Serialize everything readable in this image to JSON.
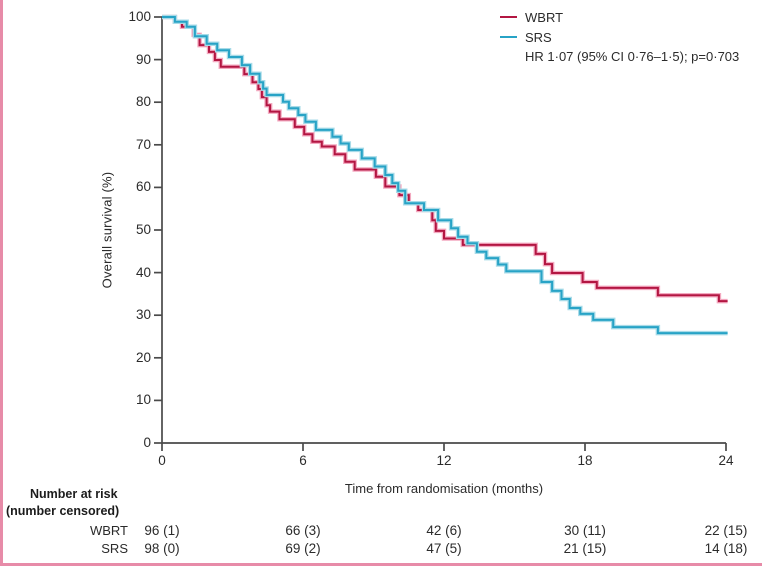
{
  "figure": {
    "accent_border_color": "#e78ba8",
    "background_color": "#ffffff",
    "axis_color": "#4a4a4a",
    "text_color": "#2b2b2b"
  },
  "legend": {
    "items": [
      {
        "label": "WBRT",
        "color": "#b31642"
      },
      {
        "label": "SRS",
        "color": "#27a3c6"
      }
    ],
    "stats_line": "HR 1·07 (95% CI 0·76–1·5); p=0·703"
  },
  "axes": {
    "y": {
      "label": "Overall survival (%)",
      "min": 0,
      "max": 100,
      "ticks": [
        0,
        10,
        20,
        30,
        40,
        50,
        60,
        70,
        80,
        90,
        100
      ]
    },
    "x": {
      "label": "Time from randomisation (months)",
      "min": 0,
      "max": 24,
      "ticks": [
        0,
        6,
        12,
        18,
        24
      ]
    }
  },
  "chart_data": {
    "type": "line",
    "subtype": "kaplan-meier-step",
    "title": "",
    "xlabel": "Time from randomisation (months)",
    "ylabel": "Overall survival (%)",
    "xlim": [
      0,
      24
    ],
    "ylim": [
      0,
      100
    ],
    "x_ticks": [
      0,
      6,
      12,
      18,
      24
    ],
    "y_ticks": [
      0,
      10,
      20,
      30,
      40,
      50,
      60,
      70,
      80,
      90,
      100
    ],
    "grid": false,
    "legend_position": "top-right",
    "annotation": "HR 1·07 (95% CI 0·76–1·5); p=0·703",
    "series": [
      {
        "name": "WBRT",
        "color": "#b31642",
        "halo_color": "#f3a9c0",
        "end_x": 24.07,
        "points": [
          [
            0,
            100
          ],
          [
            0.55,
            98.9
          ],
          [
            0.85,
            97.7
          ],
          [
            1.35,
            95.8
          ],
          [
            1.6,
            93.4
          ],
          [
            2.0,
            91.8
          ],
          [
            2.25,
            89.9
          ],
          [
            2.5,
            88.3
          ],
          [
            3.5,
            86.6
          ],
          [
            3.85,
            84.7
          ],
          [
            4.1,
            83.1
          ],
          [
            4.25,
            81.2
          ],
          [
            4.45,
            79.3
          ],
          [
            4.6,
            77.8
          ],
          [
            5.0,
            76.0
          ],
          [
            5.65,
            74.2
          ],
          [
            6.05,
            72.5
          ],
          [
            6.4,
            70.7
          ],
          [
            6.8,
            69.6
          ],
          [
            7.35,
            67.8
          ],
          [
            7.8,
            66.0
          ],
          [
            8.2,
            64.2
          ],
          [
            9.1,
            62.5
          ],
          [
            9.5,
            60.2
          ],
          [
            10.1,
            58.2
          ],
          [
            10.5,
            56.3
          ],
          [
            10.9,
            54.7
          ],
          [
            11.5,
            52.3
          ],
          [
            11.65,
            49.8
          ],
          [
            12.0,
            48.0
          ],
          [
            12.8,
            46.5
          ],
          [
            15.9,
            44.4
          ],
          [
            16.3,
            42.0
          ],
          [
            16.6,
            39.9
          ],
          [
            17.9,
            37.8
          ],
          [
            18.5,
            36.4
          ],
          [
            21.1,
            34.7
          ],
          [
            23.7,
            33.3
          ]
        ]
      },
      {
        "name": "SRS",
        "color": "#27a3c6",
        "halo_color": "#a8dbe8",
        "end_x": 24.07,
        "points": [
          [
            0,
            100
          ],
          [
            0.55,
            98.9
          ],
          [
            1.05,
            97.7
          ],
          [
            1.4,
            95.5
          ],
          [
            1.9,
            93.7
          ],
          [
            2.35,
            92.2
          ],
          [
            2.85,
            90.6
          ],
          [
            3.4,
            88.7
          ],
          [
            3.75,
            86.7
          ],
          [
            4.15,
            84.7
          ],
          [
            4.3,
            83.2
          ],
          [
            4.45,
            81.7
          ],
          [
            5.15,
            80.1
          ],
          [
            5.4,
            78.6
          ],
          [
            5.8,
            77.0
          ],
          [
            6.1,
            75.4
          ],
          [
            6.55,
            73.5
          ],
          [
            7.25,
            71.9
          ],
          [
            7.6,
            70.3
          ],
          [
            7.95,
            68.8
          ],
          [
            8.5,
            66.8
          ],
          [
            9.05,
            64.9
          ],
          [
            9.5,
            62.9
          ],
          [
            9.8,
            61.0
          ],
          [
            10.05,
            59.2
          ],
          [
            10.35,
            56.3
          ],
          [
            11.15,
            54.7
          ],
          [
            11.75,
            52.3
          ],
          [
            12.3,
            50.4
          ],
          [
            12.6,
            48.4
          ],
          [
            13.0,
            46.9
          ],
          [
            13.4,
            44.9
          ],
          [
            13.8,
            43.4
          ],
          [
            14.3,
            41.9
          ],
          [
            14.65,
            40.3
          ],
          [
            16.15,
            37.8
          ],
          [
            16.6,
            35.7
          ],
          [
            17.0,
            33.8
          ],
          [
            17.35,
            31.7
          ],
          [
            17.8,
            30.3
          ],
          [
            18.35,
            28.9
          ],
          [
            19.2,
            27.2
          ],
          [
            21.1,
            25.8
          ]
        ]
      }
    ]
  },
  "risk_table": {
    "header_line1": "Number at risk",
    "header_line2": "(number censored)",
    "time_points": [
      0,
      6,
      12,
      18,
      24
    ],
    "rows": [
      {
        "label": "WBRT",
        "values": [
          "96 (1)",
          "66 (3)",
          "42 (6)",
          "30 (11)",
          "22 (15)"
        ]
      },
      {
        "label": "SRS",
        "values": [
          "98 (0)",
          "69 (2)",
          "47 (5)",
          "21 (15)",
          "14 (18)"
        ]
      }
    ]
  }
}
